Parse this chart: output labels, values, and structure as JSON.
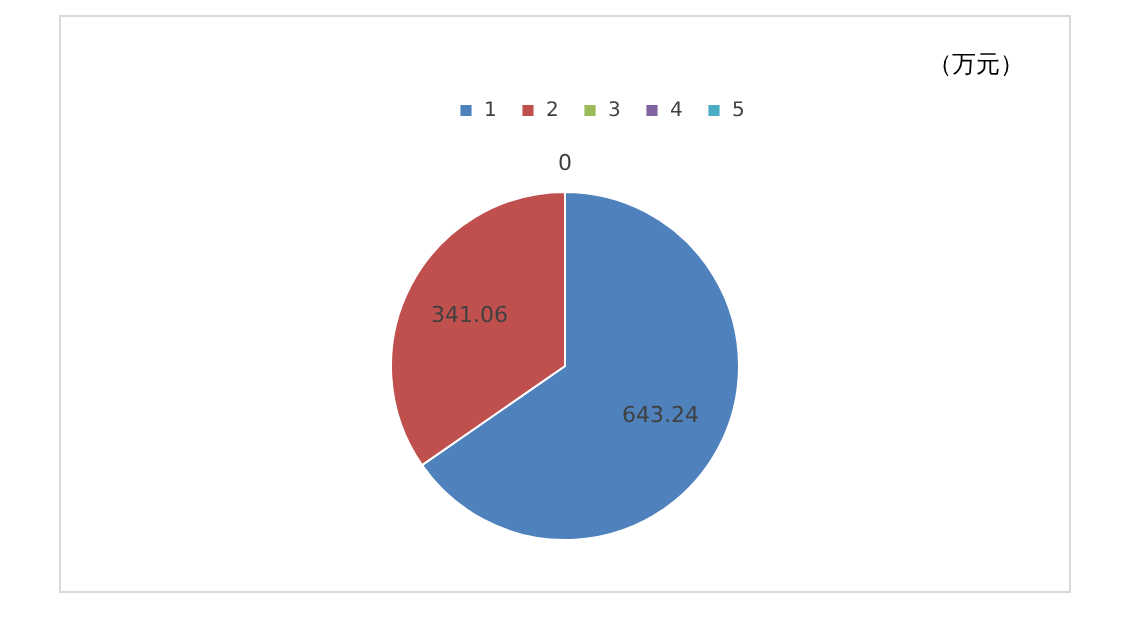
{
  "chart_data": {
    "type": "pie",
    "categories": [
      "1",
      "2",
      "3",
      "4",
      "5"
    ],
    "values": [
      643.24,
      341.06,
      0,
      0,
      0
    ],
    "colors": [
      "#4f81bd",
      "#c0504d",
      "#9bbb59",
      "#8064a2",
      "#4bacc6"
    ],
    "value_labels": [
      "643.24",
      "341.06",
      "0",
      null,
      null
    ],
    "legend": "top",
    "annotations": [
      "（万元）"
    ]
  }
}
